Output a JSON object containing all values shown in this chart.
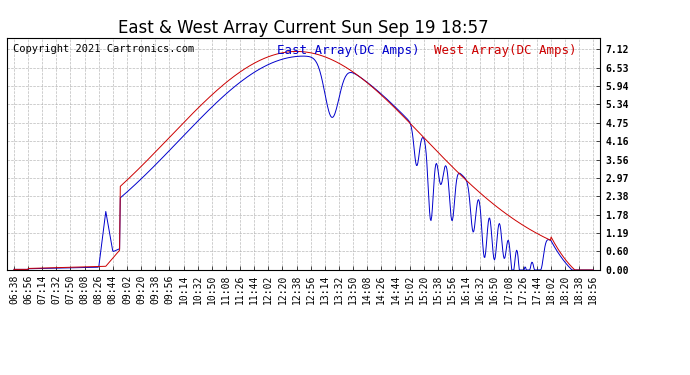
{
  "title": "East & West Array Current Sun Sep 19 18:57",
  "copyright": "Copyright 2021 Cartronics.com",
  "legend_east": "East Array(DC Amps)",
  "legend_west": "West Array(DC Amps)",
  "east_color": "#0000cc",
  "west_color": "#cc0000",
  "background_color": "#ffffff",
  "grid_color": "#aaaaaa",
  "yticks": [
    0.0,
    0.6,
    1.19,
    1.78,
    2.38,
    2.97,
    3.56,
    4.16,
    4.75,
    5.34,
    5.94,
    6.53,
    7.12
  ],
  "ylim": [
    0.0,
    7.5
  ],
  "xtick_labels": [
    "06:38",
    "06:56",
    "07:14",
    "07:32",
    "07:50",
    "08:08",
    "08:26",
    "08:44",
    "09:02",
    "09:20",
    "09:38",
    "09:56",
    "10:14",
    "10:32",
    "10:50",
    "11:08",
    "11:26",
    "11:44",
    "12:02",
    "12:20",
    "12:38",
    "12:56",
    "13:14",
    "13:32",
    "13:50",
    "14:08",
    "14:26",
    "14:44",
    "15:02",
    "15:20",
    "15:38",
    "15:56",
    "16:14",
    "16:32",
    "16:50",
    "17:08",
    "17:26",
    "17:44",
    "18:02",
    "18:20",
    "18:38",
    "18:56"
  ],
  "title_fontsize": 12,
  "tick_fontsize": 7,
  "legend_fontsize": 9,
  "copyright_fontsize": 7.5
}
